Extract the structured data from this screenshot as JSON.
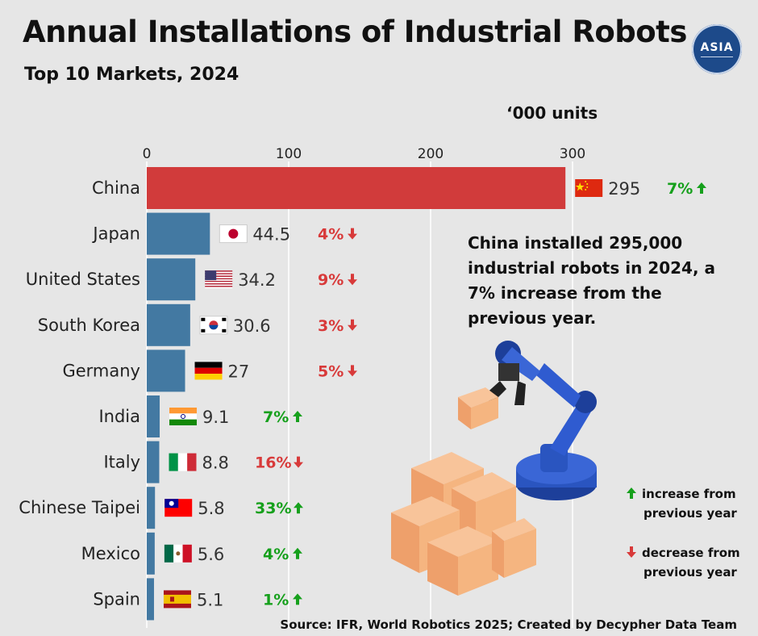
{
  "header": {
    "title": "Annual Installations of Industrial Robots",
    "subtitle": "Top 10 Markets, 2024",
    "logo_text": "ASIA"
  },
  "unit_label": "‘000 units",
  "note": "China installed 295,000 industrial robots in 2024, a 7% increase from the previous year.",
  "legend": {
    "increase_line1": "increase from",
    "increase_line2": "previous year",
    "decrease_line1": "decrease from",
    "decrease_line2": "previous year"
  },
  "source": "Source: IFR, World Robotics 2025; Created by Decypher Data Team",
  "colors": {
    "highlight_bar": "#d13b3b",
    "bar": "#4379a2",
    "increase": "#16a01c",
    "decrease": "#d83a3a",
    "background": "#e6e6e6"
  },
  "chart_data": {
    "type": "bar",
    "orientation": "horizontal",
    "title": "Annual Installations of Industrial Robots",
    "subtitle": "Top 10 Markets, 2024",
    "xlabel": "‘000 units",
    "xlim": [
      0,
      300
    ],
    "ticks": [
      0,
      100,
      200,
      300
    ],
    "grid": true,
    "categories": [
      "China",
      "Japan",
      "United States",
      "South Korea",
      "Germany",
      "India",
      "Italy",
      "Chinese Taipei",
      "Mexico",
      "Spain"
    ],
    "values": [
      295,
      44.5,
      34.2,
      30.6,
      27,
      9.1,
      8.8,
      5.8,
      5.6,
      5.1
    ],
    "value_labels": [
      "295",
      "44.5",
      "34.2",
      "30.6",
      "27",
      "9.1",
      "8.8",
      "5.8",
      "5.6",
      "5.1"
    ],
    "yoy_change": [
      "7%",
      "4%",
      "9%",
      "3%",
      "5%",
      "7%",
      "16%",
      "33%",
      "4%",
      "1%"
    ],
    "yoy_direction": [
      "up",
      "down",
      "down",
      "down",
      "down",
      "up",
      "down",
      "up",
      "up",
      "up"
    ],
    "flags": [
      "china-flag",
      "japan-flag",
      "us-flag",
      "south-korea-flag",
      "germany-flag",
      "india-flag",
      "italy-flag",
      "chinese-taipei-flag",
      "mexico-flag",
      "spain-flag"
    ]
  }
}
